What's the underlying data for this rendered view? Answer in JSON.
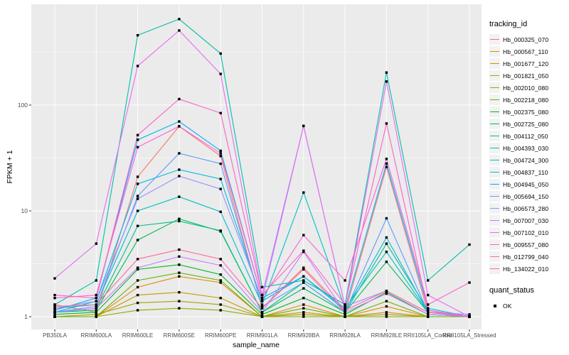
{
  "chart_data": {
    "type": "line",
    "title": "",
    "xlabel": "sample_name",
    "ylabel": "FPKM + 1",
    "y_scale": "log10",
    "y_ticks": [
      1,
      10,
      100
    ],
    "y_minor_ticks": [
      3.162,
      31.62,
      316.2
    ],
    "ylim": [
      1,
      745
    ],
    "grid": "on",
    "legend_position": "right",
    "legend_title": "tracking_id",
    "legend2_title": "quant_status",
    "legend2_items": [
      {
        "label": "OK",
        "marker": "square",
        "color": "#000000"
      }
    ],
    "panel_bg": "#EBEBEB",
    "grid_color": "#FFFFFF",
    "point_color": "#000000",
    "tick_text_color": "#4D4D4D",
    "categories": [
      "PB350LA",
      "RRIM600LA",
      "RRIM600LE",
      "RRIM600SE",
      "RRIM600PE",
      "RRIM901LA",
      "RRIM928BA",
      "RRIM928LA",
      "RRIM928LE",
      "RRII105LA_Control",
      "RRII105LA_Stressed"
    ],
    "series": [
      {
        "name": "Hb_000325_070",
        "color": "#F8766D",
        "values": [
          1.3,
          1.1,
          21,
          63,
          33,
          1.2,
          2.8,
          1.1,
          26,
          1.1,
          1.0
        ]
      },
      {
        "name": "Hb_000567_110",
        "color": "#E18A00",
        "values": [
          1.0,
          1.0,
          1.9,
          2.4,
          2.1,
          1.0,
          1.3,
          1.0,
          1.25,
          1.0,
          1.0
        ]
      },
      {
        "name": "Hb_001677_120",
        "color": "#C59900",
        "values": [
          1.0,
          1.0,
          1.6,
          1.7,
          1.5,
          1.0,
          1.1,
          1.0,
          1.1,
          1.0,
          1.0
        ]
      },
      {
        "name": "Hb_001821_050",
        "color": "#A6A000",
        "values": [
          1.0,
          1.05,
          1.35,
          1.4,
          1.3,
          1.0,
          1.05,
          1.0,
          1.05,
          1.0,
          1.0
        ]
      },
      {
        "name": "Hb_002010_080",
        "color": "#8CAB00",
        "values": [
          1.0,
          1.0,
          1.15,
          1.2,
          1.15,
          1.0,
          1.0,
          1.0,
          1.0,
          1.0,
          1.0
        ]
      },
      {
        "name": "Hb_002218_080",
        "color": "#64B200",
        "values": [
          1.0,
          1.0,
          2.2,
          2.6,
          2.2,
          1.0,
          1.2,
          1.0,
          1.4,
          1.0,
          1.0
        ]
      },
      {
        "name": "Hb_002375_080",
        "color": "#00B81F",
        "values": [
          1.05,
          1.1,
          2.8,
          3.1,
          2.5,
          1.05,
          1.5,
          1.05,
          1.7,
          1.05,
          1.0
        ]
      },
      {
        "name": "Hb_002725_080",
        "color": "#00BC59",
        "values": [
          1.1,
          1.15,
          5.3,
          8.4,
          6.4,
          1.1,
          1.85,
          1.1,
          3.3,
          1.1,
          1.0
        ]
      },
      {
        "name": "Hb_004112_050",
        "color": "#00C087",
        "values": [
          1.1,
          1.2,
          7.2,
          8.0,
          6.5,
          1.1,
          2.1,
          1.1,
          4.9,
          1.15,
          1.0
        ]
      },
      {
        "name": "Hb_004393_030",
        "color": "#00C1A7",
        "values": [
          1.3,
          2.2,
          457,
          650,
          307,
          1.9,
          2.2,
          1.3,
          203,
          2.2,
          4.8
        ]
      },
      {
        "name": "Hb_004724_300",
        "color": "#00BFC4",
        "values": [
          1.2,
          1.3,
          10,
          13.6,
          9.8,
          1.3,
          14.9,
          1.2,
          4.1,
          1.1,
          1.0
        ]
      },
      {
        "name": "Hb_004837_110",
        "color": "#00B9E3",
        "values": [
          1.1,
          1.4,
          18,
          24.5,
          20,
          1.4,
          2.4,
          1.15,
          5.6,
          1.1,
          1.0
        ]
      },
      {
        "name": "Hb_004945_050",
        "color": "#00AFF8",
        "values": [
          1.15,
          1.5,
          47,
          70,
          37,
          1.5,
          2.4,
          1.2,
          28,
          1.2,
          1.0
        ]
      },
      {
        "name": "Hb_005694_150",
        "color": "#5A9CFF",
        "values": [
          1.1,
          1.25,
          13.8,
          35,
          27.9,
          1.25,
          2.1,
          1.1,
          8.5,
          1.1,
          1.0
        ]
      },
      {
        "name": "Hb_006573_280",
        "color": "#9590FF",
        "values": [
          1.2,
          1.4,
          13,
          21.3,
          16.1,
          1.45,
          63.5,
          1.25,
          1.75,
          1.1,
          1.05
        ]
      },
      {
        "name": "Hb_007007_030",
        "color": "#C77CFF",
        "values": [
          1.1,
          1.2,
          2.9,
          3.7,
          3.05,
          1.1,
          4.1,
          1.1,
          1.65,
          1.05,
          1.0
        ]
      },
      {
        "name": "Hb_007102_010",
        "color": "#E76BF3",
        "values": [
          2.3,
          4.9,
          234,
          507,
          197,
          1.6,
          63.5,
          1.25,
          167,
          1.6,
          1.0
        ]
      },
      {
        "name": "Hb_009557_080",
        "color": "#FB61D7",
        "values": [
          1.5,
          1.6,
          40,
          63,
          35,
          1.5,
          5.9,
          2.2,
          31,
          1.3,
          2.1
        ]
      },
      {
        "name": "Hb_012799_040",
        "color": "#FF61C7",
        "values": [
          1.6,
          1.5,
          52,
          114,
          84,
          1.6,
          4.2,
          1.3,
          67,
          1.15,
          1.0
        ]
      },
      {
        "name": "Hb_134022_010",
        "color": "#FF689E",
        "values": [
          1.25,
          1.3,
          3.5,
          4.3,
          3.5,
          1.2,
          2.9,
          1.15,
          1.75,
          1.1,
          1.0
        ]
      }
    ]
  }
}
